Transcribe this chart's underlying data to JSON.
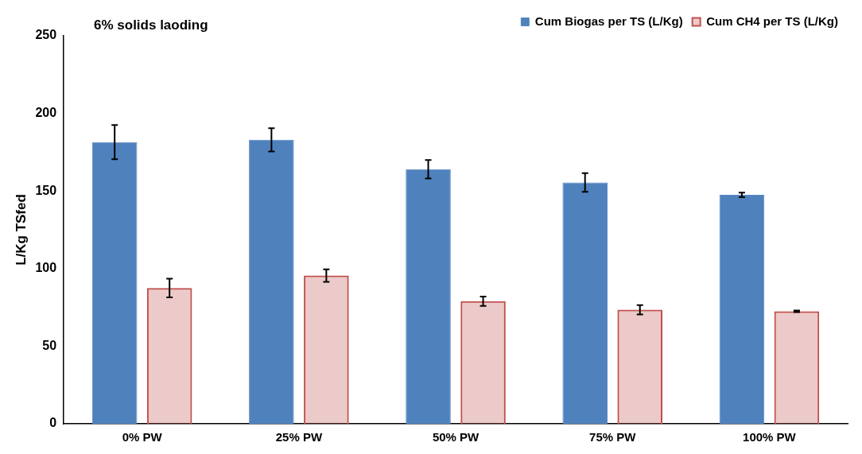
{
  "chart_data": {
    "type": "bar",
    "title": "6% solids laoding",
    "ylabel": "L/Kg TSfed",
    "categories": [
      "0% PW",
      "25% PW",
      "50% PW",
      "75% PW",
      "100% PW"
    ],
    "series": [
      {
        "name": "Cum Biogas per TS (L/Kg)",
        "color": "#4f81bd",
        "values": [
          181.5,
          183,
          164,
          155.5,
          147.5
        ],
        "errors": [
          11,
          7.5,
          6,
          6,
          1.5
        ]
      },
      {
        "name": "Cum CH4 per TS (L/Kg)",
        "color": "#c0504d",
        "values": [
          87.5,
          95.5,
          79,
          73.5,
          72.5
        ],
        "errors": [
          6,
          4,
          3,
          3,
          0.5
        ]
      }
    ],
    "ylim": [
      0,
      250
    ],
    "yticks": [
      0,
      50,
      100,
      150,
      200,
      250
    ],
    "grid": false,
    "legend": "top right"
  }
}
